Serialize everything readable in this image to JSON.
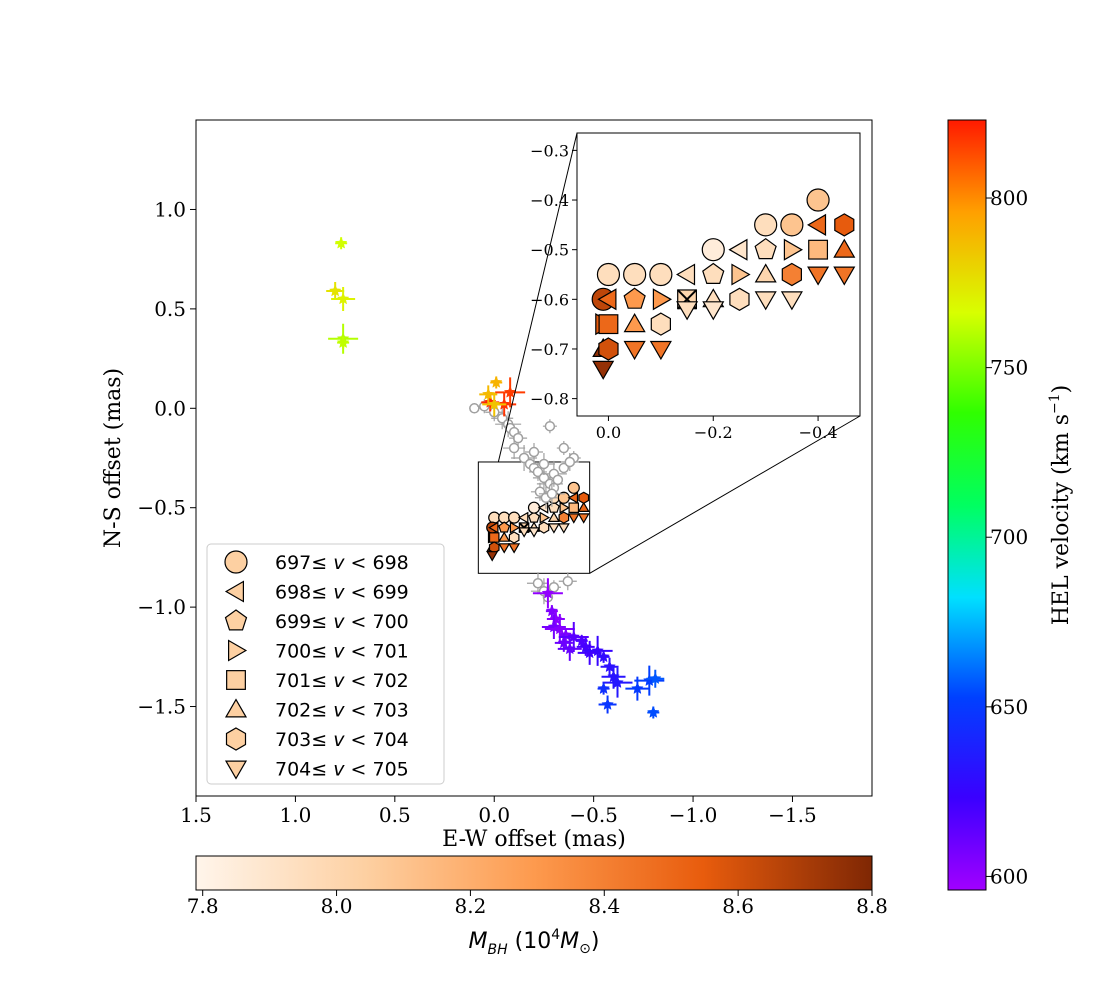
{
  "chart_data": [
    {
      "id": "main",
      "type": "scatter",
      "xlabel": "E-W offset (mas)",
      "ylabel": "N-S offset (mas)",
      "xlim": [
        1.5,
        -1.9
      ],
      "ylim": [
        -1.95,
        1.45
      ],
      "x_ticks": [
        1.5,
        1.0,
        0.5,
        0.0,
        -0.5,
        -1.0,
        -1.5
      ],
      "x_tick_labels": [
        "1.5",
        "1.0",
        "0.5",
        "0.0",
        "−0.5",
        "−1.0",
        "−1.5"
      ],
      "y_ticks": [
        1.0,
        0.5,
        0.0,
        -0.5,
        -1.0,
        -1.5
      ],
      "y_tick_labels": [
        "1.0",
        "0.5",
        "0.0",
        "−0.5",
        "−1.0",
        "−1.5"
      ],
      "series": [
        {
          "name": "high-velocity maser spots (star markers, colored by HEL velocity)",
          "marker": "star",
          "x": [
            0.77,
            0.8,
            0.76,
            0.76,
            0.76,
            0.02,
            -0.05,
            -0.08,
            -0.01,
            0.03,
            0.0,
            -0.27,
            -0.29,
            -0.31,
            -0.3,
            -0.33,
            -0.36,
            -0.35,
            -0.38,
            -0.4,
            -0.44,
            -0.46,
            -0.48,
            -0.52,
            -0.55,
            -0.58,
            -0.6,
            -0.62,
            -0.55,
            -0.57,
            -0.72,
            -0.78,
            -0.8,
            -0.81
          ],
          "y": [
            0.83,
            0.59,
            0.55,
            0.35,
            0.33,
            0.03,
            0.02,
            0.08,
            0.13,
            0.07,
            0.02,
            -0.93,
            -1.02,
            -1.06,
            -1.1,
            -1.11,
            -1.14,
            -1.18,
            -1.21,
            -1.15,
            -1.17,
            -1.2,
            -1.23,
            -1.22,
            -1.25,
            -1.3,
            -1.35,
            -1.38,
            -1.41,
            -1.49,
            -1.41,
            -1.37,
            -1.53,
            -1.36
          ],
          "velocity_kms": [
            765,
            775,
            770,
            760,
            762,
            820,
            818,
            816,
            790,
            788,
            785,
            600,
            605,
            602,
            608,
            603,
            606,
            610,
            612,
            615,
            618,
            620,
            622,
            625,
            628,
            630,
            632,
            634,
            645,
            648,
            650,
            652,
            655,
            657
          ]
        },
        {
          "name": "systemic spots with uncertain mass (gray open circles)",
          "marker": "open-circle",
          "x": [
            0.1,
            0.05,
            0.0,
            -0.04,
            -0.07,
            -0.08,
            -0.1,
            -0.12,
            -0.1,
            -0.15,
            -0.18,
            -0.2,
            -0.22,
            -0.25,
            -0.28,
            -0.3,
            -0.35,
            -0.2,
            -0.25,
            -0.3,
            -0.35,
            -0.4,
            -0.23,
            -0.26,
            -0.29,
            -0.32,
            -0.28,
            -0.38,
            -0.22,
            -0.25,
            -0.27,
            -0.3,
            -0.37
          ],
          "y": [
            0.0,
            0.01,
            -0.02,
            -0.05,
            -0.08,
            -0.1,
            -0.12,
            -0.15,
            -0.2,
            -0.25,
            -0.28,
            -0.3,
            -0.32,
            -0.35,
            -0.38,
            -0.4,
            -0.2,
            -0.22,
            -0.28,
            -0.33,
            -0.3,
            -0.25,
            -0.42,
            -0.45,
            -0.43,
            -0.36,
            -0.09,
            -0.27,
            -0.88,
            -0.92,
            -0.95,
            -0.9,
            -0.87
          ],
          "color": "#a0a0a0"
        }
      ],
      "inset_box": {
        "x_range": [
          0.08,
          -0.48
        ],
        "y_range": [
          -0.83,
          -0.27
        ]
      },
      "legend": {
        "location": "lower-left",
        "entries": [
          "697≤ v < 698",
          "698≤ v < 699",
          "699≤ v < 700",
          "700≤ v < 701",
          "701≤ v < 702",
          "702≤ v < 703",
          "703≤ v < 704",
          "704≤ v < 705"
        ],
        "entry_parts": [
          {
            "low": "697",
            "high": "698"
          },
          {
            "low": "698",
            "high": "699"
          },
          {
            "low": "699",
            "high": "700"
          },
          {
            "low": "700",
            "high": "701"
          },
          {
            "low": "701",
            "high": "702"
          },
          {
            "low": "702",
            "high": "703"
          },
          {
            "low": "703",
            "high": "704"
          },
          {
            "low": "704",
            "high": "705"
          }
        ],
        "symbol": "≤",
        "var": "v",
        "lt": "<",
        "markers": [
          "circle",
          "triangle-left",
          "pentagon",
          "triangle-right",
          "square",
          "triangle-up",
          "hexagon",
          "triangle-down"
        ]
      }
    },
    {
      "id": "inset",
      "type": "scatter",
      "xlim": [
        0.06,
        -0.48
      ],
      "ylim": [
        -0.835,
        -0.265
      ],
      "x_ticks": [
        0.0,
        -0.2,
        -0.4
      ],
      "x_tick_labels": [
        "0.0",
        "−0.2",
        "−0.4"
      ],
      "y_ticks": [
        -0.3,
        -0.4,
        -0.5,
        -0.6,
        -0.7,
        -0.8
      ],
      "y_tick_labels": [
        "−0.3",
        "−0.4",
        "−0.5",
        "−0.6",
        "−0.7",
        "−0.8"
      ],
      "points": [
        {
          "x": 0.0,
          "y": -0.55,
          "marker": "circle",
          "mass": 7.95
        },
        {
          "x": -0.05,
          "y": -0.55,
          "marker": "circle",
          "mass": 7.95
        },
        {
          "x": -0.1,
          "y": -0.55,
          "marker": "circle",
          "mass": 7.95
        },
        {
          "x": -0.15,
          "y": -0.55,
          "marker": "triangle-left",
          "mass": 7.95
        },
        {
          "x": -0.2,
          "y": -0.55,
          "marker": "pentagon",
          "mass": 7.95
        },
        {
          "x": -0.25,
          "y": -0.55,
          "marker": "triangle-right",
          "mass": 8.1
        },
        {
          "x": -0.2,
          "y": -0.5,
          "marker": "circle",
          "mass": 7.85
        },
        {
          "x": -0.25,
          "y": -0.5,
          "marker": "triangle-left",
          "mass": 7.9
        },
        {
          "x": -0.3,
          "y": -0.5,
          "marker": "pentagon",
          "mass": 7.95
        },
        {
          "x": -0.35,
          "y": -0.5,
          "marker": "triangle-right",
          "mass": 8.1
        },
        {
          "x": -0.4,
          "y": -0.5,
          "marker": "square",
          "mass": 8.15
        },
        {
          "x": -0.45,
          "y": -0.5,
          "marker": "triangle-up",
          "mass": 8.5
        },
        {
          "x": -0.3,
          "y": -0.45,
          "marker": "circle",
          "mass": 7.95
        },
        {
          "x": -0.35,
          "y": -0.45,
          "marker": "circle",
          "mass": 8.1
        },
        {
          "x": -0.4,
          "y": -0.45,
          "marker": "triangle-left",
          "mass": 8.5
        },
        {
          "x": -0.45,
          "y": -0.45,
          "marker": "hexagon",
          "mass": 8.55
        },
        {
          "x": -0.4,
          "y": -0.4,
          "marker": "circle",
          "mass": 8.1
        },
        {
          "x": -0.3,
          "y": -0.55,
          "marker": "triangle-up",
          "mass": 8.0
        },
        {
          "x": -0.35,
          "y": -0.55,
          "marker": "hexagon",
          "mass": 8.4
        },
        {
          "x": -0.4,
          "y": -0.55,
          "marker": "triangle-down",
          "mass": 8.45
        },
        {
          "x": -0.45,
          "y": -0.55,
          "marker": "triangle-down",
          "mass": 8.45
        },
        {
          "x": -0.3,
          "y": -0.6,
          "marker": "triangle-down",
          "mass": 7.95
        },
        {
          "x": -0.35,
          "y": -0.6,
          "marker": "triangle-down",
          "mass": 7.95
        },
        {
          "x": 0.01,
          "y": -0.6,
          "marker": "circle",
          "mass": 8.65
        },
        {
          "x": 0.0,
          "y": -0.6,
          "marker": "triangle-left",
          "mass": 8.5
        },
        {
          "x": -0.05,
          "y": -0.6,
          "marker": "pentagon",
          "mass": 8.3
        },
        {
          "x": -0.1,
          "y": -0.6,
          "marker": "triangle-right",
          "mass": 8.3
        },
        {
          "x": -0.15,
          "y": -0.6,
          "marker": "square-x",
          "mass": 8.0
        },
        {
          "x": -0.2,
          "y": -0.6,
          "marker": "triangle-up",
          "mass": 7.95
        },
        {
          "x": -0.25,
          "y": -0.6,
          "marker": "hexagon",
          "mass": 7.95
        },
        {
          "x": -0.15,
          "y": -0.62,
          "marker": "triangle-down",
          "mass": 7.95
        },
        {
          "x": -0.2,
          "y": -0.62,
          "marker": "triangle-down",
          "mass": 7.9
        },
        {
          "x": 0.01,
          "y": -0.65,
          "marker": "triangle-right",
          "mass": 8.55
        },
        {
          "x": 0.0,
          "y": -0.65,
          "marker": "square",
          "mass": 8.5
        },
        {
          "x": -0.05,
          "y": -0.65,
          "marker": "triangle-up",
          "mass": 8.3
        },
        {
          "x": -0.1,
          "y": -0.65,
          "marker": "hexagon",
          "mass": 7.95
        },
        {
          "x": 0.01,
          "y": -0.7,
          "marker": "triangle-up",
          "mass": 8.75
        },
        {
          "x": 0.0,
          "y": -0.7,
          "marker": "hexagon",
          "mass": 8.6
        },
        {
          "x": -0.05,
          "y": -0.7,
          "marker": "triangle-down",
          "mass": 8.45
        },
        {
          "x": -0.1,
          "y": -0.7,
          "marker": "triangle-down",
          "mass": 8.45
        },
        {
          "x": 0.01,
          "y": -0.74,
          "marker": "triangle-down",
          "mass": 8.75
        }
      ]
    },
    {
      "id": "colorbar-velocity",
      "type": "colorbar",
      "label": "HEL velocity (km s⁻¹)",
      "label_text": "HEL velocity (km s",
      "label_sup": "−1",
      "label_close": ")",
      "range": [
        596,
        823
      ],
      "ticks": [
        600,
        650,
        700,
        750,
        800
      ],
      "tick_labels": [
        "600",
        "650",
        "700",
        "750",
        "800"
      ],
      "colormap": "gist_rainbow"
    },
    {
      "id": "colorbar-mass",
      "type": "colorbar",
      "label": "M_BH (10⁴ M⊙)",
      "label_base": "M",
      "label_sub": "BH",
      "label_mid": " (10",
      "label_sup": "4",
      "label_unit": "M",
      "label_unit_sub": "⊙",
      "label_close": ")",
      "range": [
        7.79,
        8.8
      ],
      "ticks": [
        7.8,
        8.0,
        8.2,
        8.4,
        8.6,
        8.8
      ],
      "tick_labels": [
        "7.8",
        "8.0",
        "8.2",
        "8.4",
        "8.6",
        "8.8"
      ],
      "colormap": "Oranges"
    }
  ]
}
